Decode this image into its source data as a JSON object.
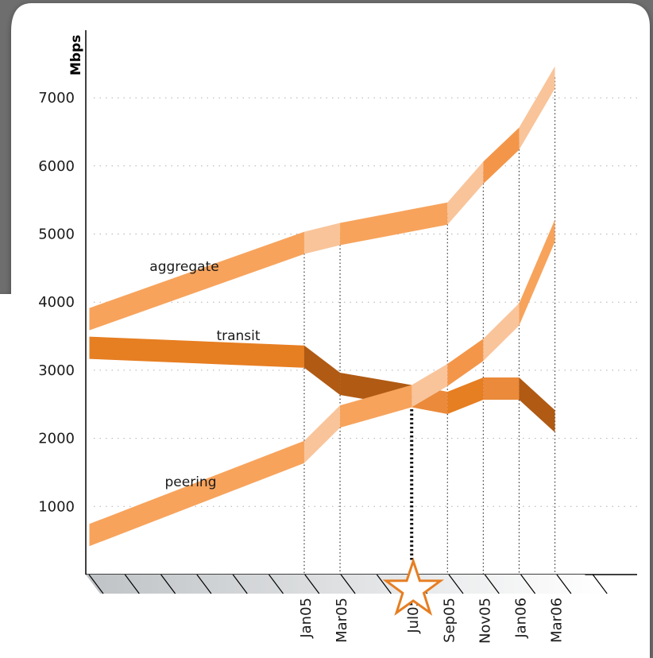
{
  "chart_data": {
    "type": "line",
    "ylabel": "Mbps",
    "xlabel": "",
    "title": "",
    "ylim": [
      0,
      7500
    ],
    "yticks": [
      1000,
      2000,
      3000,
      4000,
      5000,
      6000,
      7000
    ],
    "x_tick_labels": [
      "Jan05",
      "Mar05",
      "Jul05",
      "Sep05",
      "Nov05",
      "Jan06",
      "Mar06"
    ],
    "x_tick_months": [
      12,
      14,
      18,
      20,
      22,
      24,
      26
    ],
    "series": [
      {
        "name": "aggregate",
        "color": "#f7a35c",
        "x": [
          0,
          12,
          14,
          20,
          22,
          24,
          26
        ],
        "y": [
          3750,
          4870,
          5000,
          5300,
          5900,
          6400,
          7300
        ]
      },
      {
        "name": "transit",
        "color": "#e67e22",
        "x": [
          0,
          12,
          14,
          18,
          20,
          22,
          24,
          26
        ],
        "y": [
          3330,
          3200,
          2800,
          2620,
          2520,
          2730,
          2730,
          2250
        ]
      },
      {
        "name": "peering",
        "color": "#f7a35c",
        "x": [
          0,
          12,
          14,
          18,
          20,
          22,
          24,
          26
        ],
        "y": [
          580,
          1800,
          2320,
          2620,
          2930,
          3300,
          3820,
          5050
        ]
      }
    ],
    "highlight": {
      "x_month": 18,
      "label": "Jul05",
      "marker": "star",
      "color": "#e67e22"
    },
    "grid": true
  }
}
